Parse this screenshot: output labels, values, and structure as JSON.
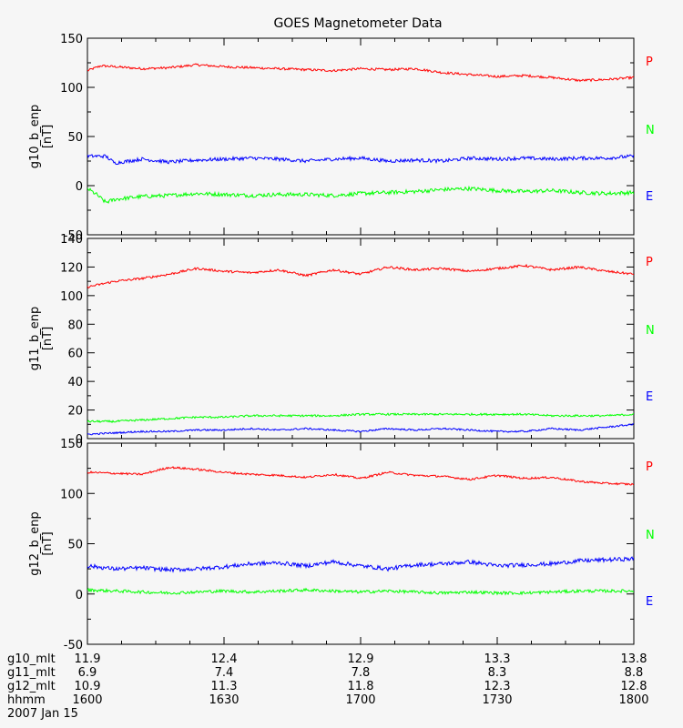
{
  "chart_data": {
    "type": "line",
    "title": "GOES Magnetometer Data",
    "x_range": [
      0,
      120
    ],
    "panels": [
      {
        "ylabel": "g10_b_enp",
        "yunit": "[nT]",
        "ylim": [
          -50,
          150
        ],
        "yticks": [
          -50,
          0,
          50,
          100,
          150
        ],
        "series": [
          {
            "name": "P",
            "color": "#ff0000",
            "noise": 1.2,
            "x": [
              0,
              3,
              6,
              12,
              18,
              24,
              30,
              36,
              42,
              48,
              54,
              60,
              66,
              72,
              78,
              84,
              90,
              96,
              102,
              108,
              114,
              120
            ],
            "y": [
              117,
              122,
              121,
              119,
              120,
              123,
              121,
              120,
              119,
              118,
              117,
              119,
              118,
              119,
              115,
              113,
              111,
              112,
              110,
              107,
              108,
              110
            ]
          },
          {
            "name": "N",
            "color": "#00ff00",
            "noise": 2.0,
            "x": [
              0,
              2,
              4,
              6,
              12,
              18,
              24,
              30,
              36,
              42,
              48,
              54,
              60,
              66,
              72,
              78,
              84,
              90,
              96,
              102,
              108,
              114,
              120
            ],
            "y": [
              -3,
              -9,
              -17,
              -14,
              -11,
              -10,
              -8,
              -9,
              -10,
              -9,
              -9,
              -10,
              -8,
              -7,
              -6,
              -4,
              -3,
              -5,
              -6,
              -5,
              -7,
              -8,
              -7
            ]
          },
          {
            "name": "E",
            "color": "#0000ff",
            "noise": 1.8,
            "x": [
              0,
              4,
              6,
              12,
              18,
              24,
              30,
              36,
              42,
              48,
              54,
              60,
              66,
              72,
              78,
              84,
              90,
              96,
              102,
              108,
              114,
              120
            ],
            "y": [
              30,
              30,
              23,
              27,
              24,
              26,
              27,
              28,
              27,
              25,
              27,
              28,
              25,
              26,
              25,
              28,
              27,
              28,
              27,
              28,
              28,
              30
            ]
          }
        ]
      },
      {
        "ylabel": "g11_b_enp",
        "yunit": "[nT]",
        "ylim": [
          0,
          140
        ],
        "yticks": [
          0,
          20,
          40,
          60,
          80,
          100,
          120,
          140
        ],
        "series": [
          {
            "name": "P",
            "color": "#ff0000",
            "noise": 0.8,
            "x": [
              0,
              6,
              12,
              18,
              24,
              30,
              36,
              42,
              48,
              54,
              60,
              66,
              72,
              78,
              84,
              90,
              96,
              102,
              108,
              114,
              120
            ],
            "y": [
              106,
              110,
              112,
              115,
              119,
              117,
              116,
              118,
              114,
              118,
              115,
              120,
              118,
              119,
              117,
              119,
              121,
              118,
              120,
              117,
              115
            ]
          },
          {
            "name": "N",
            "color": "#00ff00",
            "noise": 0.7,
            "x": [
              0,
              6,
              12,
              18,
              24,
              30,
              36,
              42,
              48,
              54,
              60,
              66,
              72,
              78,
              84,
              90,
              96,
              102,
              108,
              114,
              120
            ],
            "y": [
              12,
              12,
              13,
              14,
              15,
              15,
              16,
              16,
              16,
              16,
              17,
              17,
              17,
              17,
              17,
              17,
              17,
              16,
              16,
              16,
              17
            ]
          },
          {
            "name": "E",
            "color": "#0000ff",
            "noise": 0.6,
            "x": [
              0,
              6,
              12,
              18,
              24,
              30,
              36,
              42,
              48,
              54,
              60,
              66,
              72,
              78,
              84,
              90,
              96,
              102,
              108,
              114,
              120
            ],
            "y": [
              3,
              4,
              5,
              5,
              6,
              6,
              7,
              6,
              7,
              6,
              5,
              7,
              6,
              7,
              6,
              5,
              5,
              7,
              6,
              8,
              10
            ]
          }
        ]
      },
      {
        "ylabel": "g12_b_enp",
        "yunit": "[nT]",
        "ylim": [
          -50,
          150
        ],
        "yticks": [
          -50,
          0,
          50,
          100,
          150
        ],
        "series": [
          {
            "name": "P",
            "color": "#ff0000",
            "noise": 1.0,
            "x": [
              0,
              6,
              12,
              18,
              24,
              30,
              36,
              42,
              48,
              54,
              60,
              66,
              72,
              78,
              84,
              90,
              96,
              102,
              108,
              114,
              120
            ],
            "y": [
              121,
              120,
              119,
              126,
              124,
              121,
              119,
              118,
              116,
              119,
              115,
              121,
              118,
              117,
              114,
              118,
              115,
              116,
              112,
              110,
              109
            ]
          },
          {
            "name": "N",
            "color": "#00ff00",
            "noise": 1.5,
            "x": [
              0,
              6,
              12,
              18,
              24,
              30,
              36,
              42,
              48,
              54,
              60,
              66,
              72,
              78,
              84,
              90,
              96,
              102,
              108,
              114,
              120
            ],
            "y": [
              4,
              3,
              2,
              1,
              2,
              3,
              2,
              3,
              4,
              3,
              2,
              3,
              2,
              1,
              2,
              1,
              1,
              2,
              3,
              3,
              3
            ]
          },
          {
            "name": "E",
            "color": "#0000ff",
            "noise": 2.0,
            "x": [
              0,
              6,
              12,
              18,
              24,
              30,
              36,
              42,
              48,
              54,
              60,
              66,
              72,
              78,
              84,
              90,
              96,
              102,
              108,
              114,
              120
            ],
            "y": [
              28,
              25,
              26,
              24,
              25,
              27,
              30,
              31,
              28,
              32,
              28,
              25,
              29,
              30,
              32,
              28,
              29,
              30,
              33,
              34,
              35
            ]
          }
        ]
      }
    ],
    "x_axis": {
      "ticks": [
        0,
        30,
        60,
        90,
        120
      ],
      "minor_ticks_per_major": 3,
      "rows": [
        {
          "label": "g10_mlt",
          "values": [
            "11.9",
            "12.4",
            "12.9",
            "13.3",
            "13.8"
          ]
        },
        {
          "label": "g11_mlt",
          "values": [
            "6.9",
            "7.4",
            "7.8",
            "8.3",
            "8.8"
          ]
        },
        {
          "label": "g12_mlt",
          "values": [
            "10.9",
            "11.3",
            "11.8",
            "12.3",
            "12.8"
          ]
        },
        {
          "label": "hhmm",
          "values": [
            "1600",
            "1630",
            "1700",
            "1730",
            "1800"
          ]
        }
      ],
      "date": "2007 Jan 15"
    }
  }
}
